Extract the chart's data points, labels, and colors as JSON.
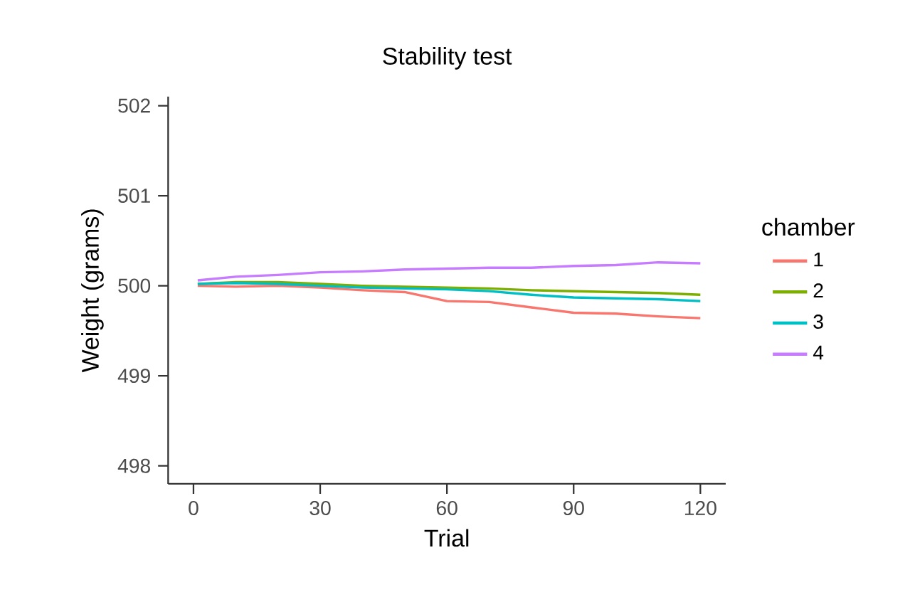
{
  "chart_data": {
    "type": "line",
    "title": "Stability test",
    "xlabel": "Trial",
    "ylabel": "Weight (grams)",
    "legend_title": "chamber",
    "legend": "right",
    "grid": false,
    "line_style": "solid",
    "marker": "none",
    "xlim": [
      -6,
      126
    ],
    "ylim": [
      497.8,
      502.1
    ],
    "xticks": [
      0,
      30,
      60,
      90,
      120
    ],
    "yticks": [
      498,
      499,
      500,
      501,
      502
    ],
    "x": [
      1,
      10,
      20,
      30,
      40,
      50,
      60,
      70,
      80,
      90,
      100,
      110,
      120
    ],
    "series": [
      {
        "name": "1",
        "color": "#f8766d",
        "values": [
          500.0,
          499.99,
          500.0,
          499.98,
          499.95,
          499.93,
          499.83,
          499.82,
          499.76,
          499.7,
          499.69,
          499.66,
          499.64
        ]
      },
      {
        "name": "2",
        "color": "#7cae00",
        "values": [
          500.02,
          500.04,
          500.04,
          500.02,
          500.0,
          499.99,
          499.98,
          499.97,
          499.95,
          499.94,
          499.93,
          499.92,
          499.9
        ]
      },
      {
        "name": "3",
        "color": "#00bfc4",
        "values": [
          500.02,
          500.03,
          500.02,
          500.0,
          499.98,
          499.97,
          499.96,
          499.94,
          499.9,
          499.87,
          499.86,
          499.85,
          499.83
        ]
      },
      {
        "name": "4",
        "color": "#c77cff",
        "values": [
          500.06,
          500.1,
          500.12,
          500.15,
          500.16,
          500.18,
          500.19,
          500.2,
          500.2,
          500.22,
          500.23,
          500.26,
          500.25
        ]
      }
    ]
  }
}
